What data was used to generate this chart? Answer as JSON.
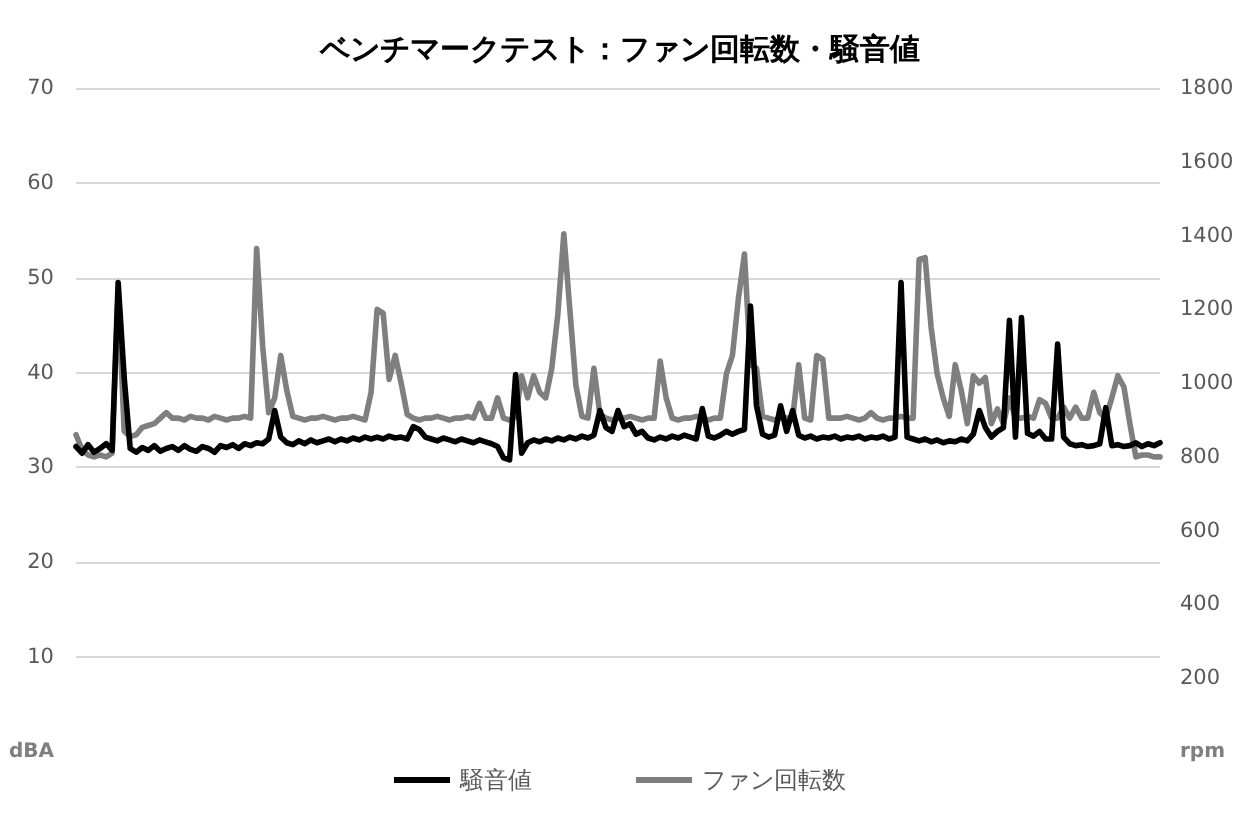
{
  "chart_data": {
    "type": "line",
    "title": "ベンチマークテスト：ファン回転数・騒音値",
    "categories": [
      null,
      null,
      null,
      null,
      null,
      null,
      null,
      null,
      null,
      null,
      null,
      null,
      null,
      null,
      null,
      null,
      null,
      null,
      null,
      null,
      null,
      null,
      null,
      null,
      null,
      null,
      null,
      null,
      null,
      null,
      null,
      null,
      null,
      null,
      null,
      null,
      null,
      null,
      null,
      null,
      null,
      null,
      null,
      null,
      null,
      null,
      null,
      null,
      null,
      null,
      null,
      null,
      null,
      null,
      null,
      null,
      null,
      null,
      null,
      null,
      null,
      null,
      null,
      null,
      null,
      null,
      null,
      null,
      null,
      null,
      null,
      null,
      null,
      null,
      null,
      null,
      null,
      null,
      null,
      null,
      null,
      null,
      null,
      null,
      null,
      null,
      null,
      null,
      null,
      null,
      null,
      null,
      null,
      null,
      null,
      null,
      null,
      null,
      null,
      null,
      null,
      null,
      null,
      null,
      null,
      null,
      null,
      null,
      null,
      null,
      null,
      null,
      null,
      null,
      null,
      null,
      null,
      null,
      null,
      null,
      null,
      null,
      null,
      null,
      null,
      null,
      null,
      null,
      null,
      null,
      null,
      null,
      null,
      null,
      null,
      null,
      null,
      null,
      null,
      null,
      null,
      null,
      null,
      null,
      null,
      null,
      null,
      null,
      null,
      null,
      null,
      null,
      null,
      null,
      null,
      null,
      null,
      null,
      null,
      null,
      null,
      null,
      null,
      null,
      null,
      null,
      null,
      null,
      null,
      null,
      null,
      null,
      null,
      null,
      null,
      null,
      null,
      null,
      null,
      null,
      null
    ],
    "series": [
      {
        "name": "騒音値",
        "color": "#000000",
        "values": [
          32.2,
          31.5,
          32.4,
          31.6,
          32.0,
          32.5,
          31.8,
          49.5,
          39.5,
          32.0,
          31.6,
          32.1,
          31.8,
          32.3,
          31.7,
          32.0,
          32.2,
          31.8,
          32.3,
          31.9,
          31.7,
          32.2,
          32.0,
          31.6,
          32.3,
          32.1,
          32.4,
          32.0,
          32.5,
          32.3,
          32.6,
          32.5,
          33.0,
          36.0,
          33.2,
          32.6,
          32.4,
          32.8,
          32.5,
          32.9,
          32.6,
          32.8,
          33.0,
          32.7,
          33.0,
          32.8,
          33.1,
          32.9,
          33.2,
          33.0,
          33.2,
          33.0,
          33.3,
          33.1,
          33.2,
          33.0,
          34.3,
          34.0,
          33.2,
          33.0,
          32.8,
          33.1,
          32.9,
          32.7,
          33.0,
          32.8,
          32.6,
          32.9,
          32.7,
          32.5,
          32.2,
          31.0,
          30.8,
          39.8,
          31.5,
          32.6,
          32.9,
          32.7,
          33.0,
          32.8,
          33.1,
          32.9,
          33.2,
          33.0,
          33.3,
          33.1,
          33.4,
          36.0,
          34.2,
          33.8,
          36.0,
          34.3,
          34.6,
          33.5,
          33.8,
          33.1,
          32.9,
          33.2,
          33.0,
          33.3,
          33.1,
          33.4,
          33.2,
          33.0,
          36.2,
          33.3,
          33.1,
          33.4,
          33.8,
          33.5,
          33.8,
          34.0,
          47.0,
          36.5,
          33.5,
          33.2,
          33.4,
          36.5,
          33.8,
          36.0,
          33.4,
          33.1,
          33.3,
          33.0,
          33.2,
          33.1,
          33.3,
          33.0,
          33.2,
          33.1,
          33.3,
          33.0,
          33.2,
          33.1,
          33.3,
          33.0,
          33.2,
          49.5,
          33.2,
          33.0,
          32.8,
          33.0,
          32.7,
          32.9,
          32.6,
          32.8,
          32.7,
          33.0,
          32.8,
          33.5,
          36.0,
          34.2,
          33.2,
          33.8,
          34.2,
          45.5,
          33.2,
          45.8,
          33.6,
          33.3,
          33.8,
          33.0,
          33.0,
          43.0,
          33.2,
          32.5,
          32.3,
          32.4,
          32.2,
          32.3,
          32.5,
          36.3,
          32.3,
          32.4,
          32.2,
          32.3,
          32.6,
          32.2,
          32.5,
          32.3,
          32.6
        ]
      },
      {
        "name": "ファン回転数",
        "color": "#7f7f7f",
        "axis": "y2",
        "values": [
          860,
          820,
          805,
          800,
          805,
          800,
          810,
          1250,
          870,
          855,
          860,
          880,
          885,
          890,
          905,
          920,
          905,
          905,
          900,
          910,
          905,
          905,
          900,
          910,
          905,
          900,
          905,
          905,
          910,
          905,
          1365,
          1100,
          920,
          960,
          1075,
          980,
          910,
          905,
          900,
          905,
          905,
          910,
          905,
          900,
          905,
          905,
          910,
          905,
          900,
          975,
          1200,
          1190,
          1010,
          1075,
          1000,
          915,
          905,
          900,
          905,
          905,
          910,
          905,
          900,
          905,
          905,
          910,
          905,
          945,
          905,
          905,
          960,
          905,
          900,
          910,
          1020,
          960,
          1020,
          975,
          960,
          1040,
          1185,
          1405,
          1200,
          995,
          910,
          905,
          1040,
          915,
          905,
          900,
          905,
          905,
          910,
          905,
          900,
          905,
          905,
          1060,
          960,
          905,
          900,
          905,
          905,
          910,
          905,
          900,
          905,
          905,
          1025,
          1075,
          1230,
          1350,
          1050,
          1040,
          910,
          905,
          900,
          905,
          905,
          905,
          1050,
          905,
          900,
          1075,
          1065,
          905,
          905,
          905,
          910,
          905,
          900,
          905,
          920,
          905,
          900,
          905,
          905,
          910,
          905,
          905,
          1335,
          1340,
          1150,
          1025,
          960,
          910,
          1050,
          980,
          890,
          1020,
          1000,
          1015,
          890,
          930,
          890,
          960,
          905,
          905,
          910,
          905,
          955,
          945,
          905,
          905,
          935,
          905,
          935,
          905,
          905,
          975,
          920,
          905,
          960,
          1020,
          990,
          890,
          800,
          805,
          805,
          800,
          800
        ]
      }
    ],
    "ylim": [
      0,
      70
    ],
    "yticks": [
      {
        "value": 0,
        "label": "dBA"
      },
      10,
      20,
      30,
      40,
      50,
      60,
      70
    ],
    "y2lim": [
      0,
      1800
    ],
    "y2ticks": [
      {
        "value": 0,
        "label": "rpm"
      },
      200,
      400,
      600,
      800,
      1000,
      1200,
      1400,
      1600,
      1800
    ],
    "grid": "y",
    "legend": "bottom",
    "marker": "none"
  }
}
